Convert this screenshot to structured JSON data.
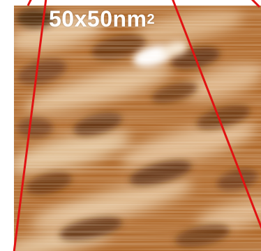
{
  "image": {
    "scale_value": "50x50nm",
    "scale_exponent": "2",
    "palette": {
      "dark": "#5a2a08",
      "mid": "#b06a2c",
      "light": "#e8c9a2",
      "bright": "#ffffff"
    },
    "marker_color": "#e11212"
  }
}
